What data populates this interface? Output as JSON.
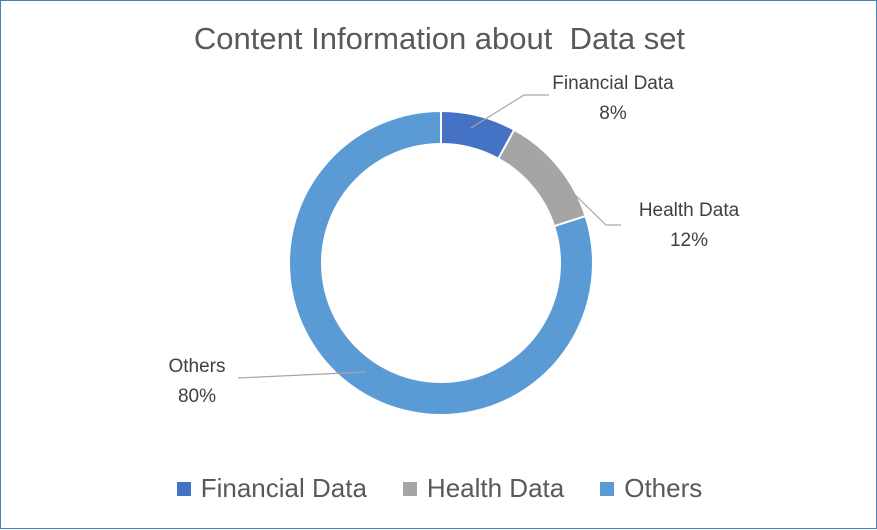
{
  "chart_data": {
    "type": "pie",
    "title": "Content Information about  Data set",
    "categories": [
      "Financial Data",
      "Health Data",
      "Others"
    ],
    "values": [
      8,
      12,
      80
    ],
    "value_labels": [
      "8%",
      "12%",
      "80%"
    ],
    "colors": [
      "#4472c4",
      "#a5a5a5",
      "#5b9bd5"
    ],
    "donut": true,
    "legend_position": "bottom"
  }
}
